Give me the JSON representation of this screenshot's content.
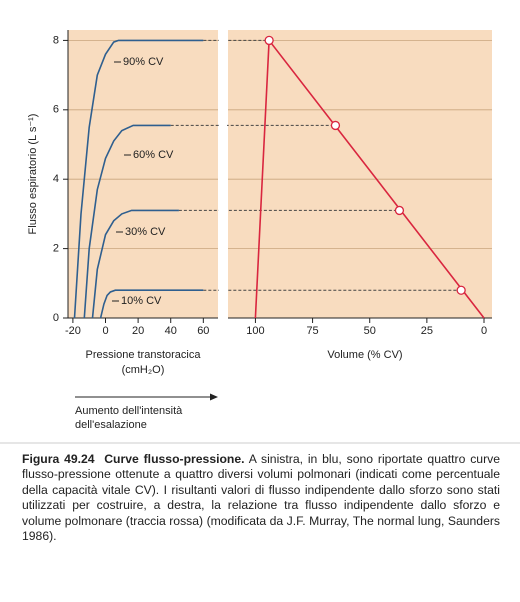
{
  "chart_data": [
    {
      "type": "line",
      "ylabel": "Flusso espiratorio (L s⁻¹)",
      "xlabel": [
        "Pressione transtoracica",
        "(cmH₂O)"
      ],
      "annotation": [
        "Aumento dell'intensità",
        "dell'esalazione"
      ],
      "xlim": [
        -23,
        69
      ],
      "xticks": [
        -20,
        0,
        20,
        40,
        60
      ],
      "ylim": [
        0,
        8.3
      ],
      "yticks": [
        0,
        2,
        4,
        6,
        8
      ],
      "grid": true,
      "series": [
        {
          "name": "90% CV",
          "color": "#2f5f8f",
          "x": [
            -19,
            -15,
            -10,
            -5,
            0,
            5,
            8,
            60
          ],
          "values": [
            0,
            3,
            5.5,
            7,
            7.6,
            7.95,
            8,
            8
          ]
        },
        {
          "name": "60% CV",
          "color": "#2f5f8f",
          "x": [
            -13,
            -10,
            -5,
            0,
            5,
            10,
            17,
            40
          ],
          "values": [
            0,
            2,
            3.7,
            4.6,
            5.1,
            5.4,
            5.55,
            5.55
          ]
        },
        {
          "name": "30% CV",
          "color": "#2f5f8f",
          "x": [
            -8,
            -5,
            0,
            5,
            10,
            16,
            45
          ],
          "values": [
            0,
            1.4,
            2.4,
            2.8,
            3.0,
            3.1,
            3.1
          ]
        },
        {
          "name": "10% CV",
          "color": "#2f5f8f",
          "x": [
            -3,
            -1,
            1,
            3,
            6,
            60
          ],
          "values": [
            0,
            0.4,
            0.65,
            0.75,
            0.8,
            0.8
          ]
        }
      ]
    },
    {
      "type": "line",
      "xlabel": "Volume (% CV)",
      "xlim": [
        112,
        -3.5
      ],
      "xticks": [
        100,
        75,
        50,
        25,
        0
      ],
      "ylim": [
        0,
        8.3
      ],
      "yticks": [
        0,
        2,
        4,
        6,
        8
      ],
      "grid": true,
      "series": [
        {
          "color": "#d9263f",
          "x": [
            100,
            94,
            0
          ],
          "values": [
            0,
            8,
            0
          ]
        }
      ],
      "points": {
        "x": [
          94,
          65,
          37,
          10
        ],
        "values": [
          8,
          5.55,
          3.1,
          0.8
        ]
      }
    }
  ],
  "caption": {
    "label": "Figura 49.24",
    "heading": "Curve flusso-pressione.",
    "text": "A sinistra, in blu, sono riportate quattro curve flusso-pressione ottenute a quattro diversi volumi polmonari (indicati come percentuale della capacità vitale CV). I risultanti valori di flusso indipendente dallo sforzo sono stati utilizzati per costruire, a destra, la relazione tra flusso indipendente dallo sforzo e volume polmonare (traccia rossa) (modificata da J.F. Murray, The normal lung, Saunders 1986)."
  }
}
